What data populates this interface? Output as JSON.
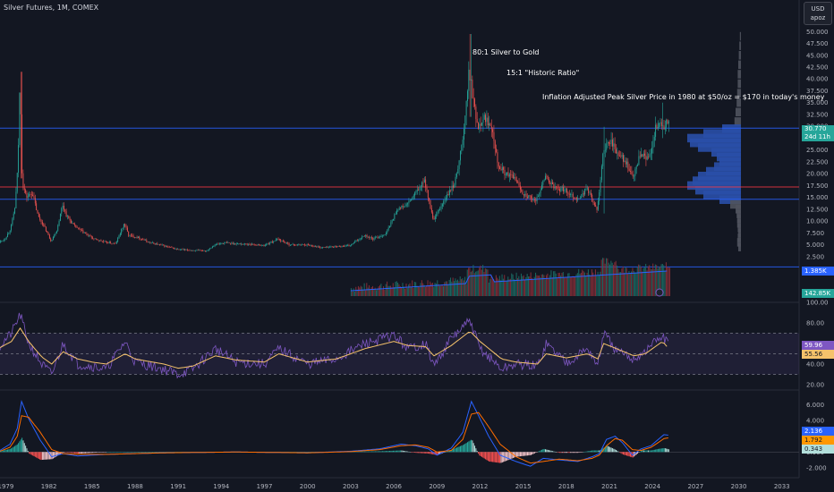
{
  "header": {
    "symbol_title": "Silver Futures, 1M, COMEX"
  },
  "currency_box": {
    "currency": "USD",
    "scale": "apoz"
  },
  "annotations": [
    {
      "text": "80:1 Silver to Gold"
    },
    {
      "text": "15:1 \"Historic Ratio\""
    },
    {
      "text": "Inflation Adjusted Peak Silver Price in 1980 at $50/oz = $170 in today's money"
    }
  ],
  "price_badges": {
    "last_price": "30.770",
    "countdown": "24d 11h",
    "volume_ma": "1.385K",
    "volume_last": "142.85K"
  },
  "rsi_badges": {
    "rsi": "59.96",
    "rsi_ma": "55.56"
  },
  "macd_badges": {
    "macd": "2.136",
    "signal": "1.792",
    "hist": "0.343"
  },
  "colors": {
    "bg": "#131722",
    "up": "#26a69a",
    "down": "#ef5350",
    "blue_line": "#2962ff",
    "red_line": "#f23645",
    "rsi_line": "#7e57c2",
    "rsi_ma": "#f5c26b",
    "profile_blue": "#2a4fa8"
  },
  "chart_data": [
    {
      "type": "candlestick",
      "price_axis_ticks": [
        "50.000",
        "47.500",
        "45.000",
        "42.500",
        "40.000",
        "37.500",
        "35.000",
        "32.500",
        "30.000",
        "27.500",
        "25.000",
        "22.500",
        "20.000",
        "17.500",
        "15.000",
        "12.500",
        "10.000",
        "7.500",
        "5.000",
        "2.500"
      ],
      "ylim": [
        0,
        51
      ],
      "time_axis_ticks": [
        "1979",
        "1982",
        "1985",
        "1988",
        "1991",
        "1994",
        "1997",
        "2000",
        "2003",
        "2006",
        "2009",
        "2012",
        "2015",
        "2018",
        "2021",
        "2024",
        "2027",
        "2030",
        "2033"
      ],
      "xlim": [
        1978.6,
        2034.2
      ],
      "horizontal_levels": [
        {
          "price": 29.6,
          "color": "blue"
        },
        {
          "price": 17.2,
          "color": "red"
        },
        {
          "price": 14.6,
          "color": "blue"
        },
        {
          "price": 0.3,
          "color": "blue"
        }
      ],
      "price_path": [
        [
          1978.6,
          5.6
        ],
        [
          1979.0,
          6.2
        ],
        [
          1979.4,
          8.5
        ],
        [
          1979.7,
          13
        ],
        [
          1979.9,
          22
        ],
        [
          1980.05,
          41
        ],
        [
          1980.2,
          18
        ],
        [
          1980.5,
          15
        ],
        [
          1980.9,
          16
        ],
        [
          1981.3,
          11
        ],
        [
          1981.7,
          9
        ],
        [
          1982.2,
          5.8
        ],
        [
          1982.6,
          8
        ],
        [
          1983.0,
          13.5
        ],
        [
          1983.3,
          11
        ],
        [
          1983.8,
          9
        ],
        [
          1984.5,
          7.5
        ],
        [
          1985.2,
          6.2
        ],
        [
          1986.0,
          5.5
        ],
        [
          1986.7,
          5.2
        ],
        [
          1987.3,
          9.5
        ],
        [
          1987.6,
          7
        ],
        [
          1988.3,
          6.5
        ],
        [
          1989.0,
          5.5
        ],
        [
          1990.0,
          4.8
        ],
        [
          1991.0,
          4.0
        ],
        [
          1992.0,
          3.8
        ],
        [
          1993.0,
          3.7
        ],
        [
          1993.6,
          5.0
        ],
        [
          1994.3,
          5.4
        ],
        [
          1995.0,
          5.2
        ],
        [
          1996.0,
          5.1
        ],
        [
          1997.0,
          4.8
        ],
        [
          1998.0,
          6.2
        ],
        [
          1998.8,
          5.0
        ],
        [
          2000.0,
          5.0
        ],
        [
          2001.0,
          4.4
        ],
        [
          2002.0,
          4.6
        ],
        [
          2003.0,
          4.8
        ],
        [
          2004.0,
          7.0
        ],
        [
          2004.6,
          6.2
        ],
        [
          2005.5,
          7.3
        ],
        [
          2006.3,
          12.5
        ],
        [
          2007.0,
          13.5
        ],
        [
          2008.2,
          18.5
        ],
        [
          2008.8,
          10
        ],
        [
          2009.5,
          14
        ],
        [
          2010.3,
          18
        ],
        [
          2010.9,
          28
        ],
        [
          2011.3,
          42
        ],
        [
          2011.6,
          35
        ],
        [
          2011.9,
          30
        ],
        [
          2012.3,
          32
        ],
        [
          2012.9,
          30
        ],
        [
          2013.3,
          22
        ],
        [
          2013.8,
          20
        ],
        [
          2014.5,
          19
        ],
        [
          2015.0,
          16
        ],
        [
          2015.9,
          14
        ],
        [
          2016.6,
          19.5
        ],
        [
          2017.2,
          17
        ],
        [
          2018.0,
          16.5
        ],
        [
          2018.9,
          14.5
        ],
        [
          2019.5,
          17
        ],
        [
          2020.2,
          12
        ],
        [
          2020.6,
          24
        ],
        [
          2020.9,
          26
        ],
        [
          2021.2,
          27
        ],
        [
          2021.6,
          24
        ],
        [
          2022.1,
          23
        ],
        [
          2022.7,
          19
        ],
        [
          2023.2,
          24
        ],
        [
          2023.8,
          23
        ],
        [
          2024.3,
          30
        ],
        [
          2024.6,
          31
        ],
        [
          2024.8,
          29
        ],
        [
          2025.0,
          31
        ],
        [
          2025.1,
          30.77
        ]
      ],
      "peaks": [
        {
          "x": 1980.05,
          "high": 41.5,
          "low": 19.0
        },
        {
          "x": 2011.3,
          "high": 49.5,
          "low": 32.0
        },
        {
          "x": 2020.6,
          "high": 29.9,
          "low": 11.6
        },
        {
          "x": 2024.7,
          "high": 35.0,
          "low": 27.5
        }
      ],
      "volume_profile": {
        "bins_price": [
          49,
          47,
          45,
          43,
          41,
          39,
          37,
          35,
          33,
          31,
          29.5,
          28.5,
          27.5,
          26.5,
          25.5,
          24.5,
          23.5,
          22.5,
          21.5,
          20.5,
          19.5,
          18.5,
          17.5,
          16.5,
          15.5,
          14.5,
          13.5,
          12.5,
          11.5,
          10.5,
          9.5,
          8.5,
          7.5,
          6.5,
          5.5,
          4.5
        ],
        "bins_width": [
          0.02,
          0.03,
          0.04,
          0.05,
          0.06,
          0.06,
          0.07,
          0.08,
          0.1,
          0.12,
          0.35,
          0.7,
          1.0,
          0.95,
          0.8,
          0.55,
          0.45,
          0.4,
          0.5,
          0.65,
          0.8,
          0.9,
          1.0,
          0.85,
          0.7,
          0.4,
          0.2,
          0.1,
          0.08,
          0.07,
          0.07,
          0.06,
          0.05,
          0.06,
          0.07,
          0.05
        ]
      }
    },
    {
      "type": "line",
      "name": "RSI",
      "axis_ticks": [
        "100.00",
        "80.00",
        "60.00",
        "40.00",
        "20.00"
      ],
      "ylim": [
        20,
        100
      ],
      "bands": [
        70,
        50,
        30
      ],
      "x": [
        1978.6,
        1979.4,
        1980.0,
        1980.6,
        1981.5,
        1982.2,
        1983.0,
        1984,
        1985,
        1986,
        1987.3,
        1988,
        1990,
        1991,
        1992,
        1993.6,
        1995,
        1997,
        1998,
        2000,
        2002,
        2004,
        2006,
        2007,
        2008.2,
        2008.8,
        2010,
        2011.3,
        2012,
        2013.5,
        2014.5,
        2016,
        2016.6,
        2018,
        2019.5,
        2020.2,
        2020.6,
        2021.5,
        2022.7,
        2023.5,
        2024.3,
        2024.7,
        2025.1
      ],
      "values": [
        58,
        70,
        88,
        60,
        40,
        30,
        60,
        40,
        38,
        35,
        62,
        42,
        35,
        30,
        35,
        55,
        42,
        40,
        55,
        40,
        45,
        60,
        68,
        55,
        60,
        38,
        65,
        82,
        55,
        35,
        40,
        38,
        60,
        42,
        55,
        38,
        70,
        52,
        45,
        52,
        64,
        66,
        60
      ],
      "ma_values": [
        56,
        62,
        75,
        62,
        47,
        40,
        52,
        45,
        42,
        40,
        50,
        45,
        40,
        36,
        38,
        48,
        44,
        42,
        50,
        42,
        45,
        55,
        62,
        58,
        57,
        48,
        58,
        72,
        62,
        45,
        42,
        40,
        50,
        46,
        50,
        45,
        60,
        55,
        48,
        50,
        58,
        62,
        55.56
      ]
    },
    {
      "type": "line",
      "name": "MACD",
      "axis_ticks": [
        "6.000",
        "4.000",
        "2.000",
        "0.000",
        "-2.000"
      ],
      "ylim": [
        -2.8,
        7.4
      ],
      "x": [
        1978.6,
        1979.3,
        1979.8,
        1980.1,
        1980.6,
        1981.4,
        1982.2,
        1983.0,
        1984,
        1986,
        1988,
        1990,
        1995,
        2000,
        2003,
        2005,
        2006.5,
        2007.5,
        2008.4,
        2009.0,
        2010.0,
        2010.8,
        2011.4,
        2011.9,
        2012.6,
        2013.4,
        2014.5,
        2015.5,
        2016.4,
        2017.5,
        2018.8,
        2019.8,
        2020.3,
        2020.8,
        2021.4,
        2021.9,
        2022.6,
        2023.2,
        2023.9,
        2024.4,
        2024.8,
        2025.1
      ],
      "values": [
        0.2,
        1.0,
        3.0,
        6.4,
        4.2,
        1.5,
        -0.6,
        -0.2,
        -0.5,
        -0.3,
        -0.2,
        -0.1,
        0.0,
        -0.1,
        0.1,
        0.4,
        1.0,
        0.8,
        0.4,
        -0.4,
        0.5,
        2.5,
        6.4,
        4.6,
        2.0,
        -0.4,
        -1.2,
        -1.8,
        -0.8,
        -1.0,
        -1.2,
        -0.6,
        -0.2,
        1.6,
        2.0,
        1.2,
        -0.4,
        0.4,
        0.8,
        1.6,
        2.2,
        2.136
      ],
      "signal_values": [
        0.1,
        0.6,
        2.0,
        4.6,
        4.4,
        2.5,
        0.3,
        -0.2,
        -0.3,
        -0.3,
        -0.2,
        -0.1,
        0.0,
        -0.1,
        0.05,
        0.3,
        0.8,
        0.9,
        0.6,
        0.0,
        0.2,
        1.6,
        4.8,
        5.0,
        3.2,
        1.0,
        -0.6,
        -1.4,
        -1.2,
        -0.9,
        -1.1,
        -0.8,
        -0.4,
        0.8,
        1.7,
        1.5,
        0.3,
        0.2,
        0.6,
        1.2,
        1.7,
        1.792
      ]
    }
  ]
}
